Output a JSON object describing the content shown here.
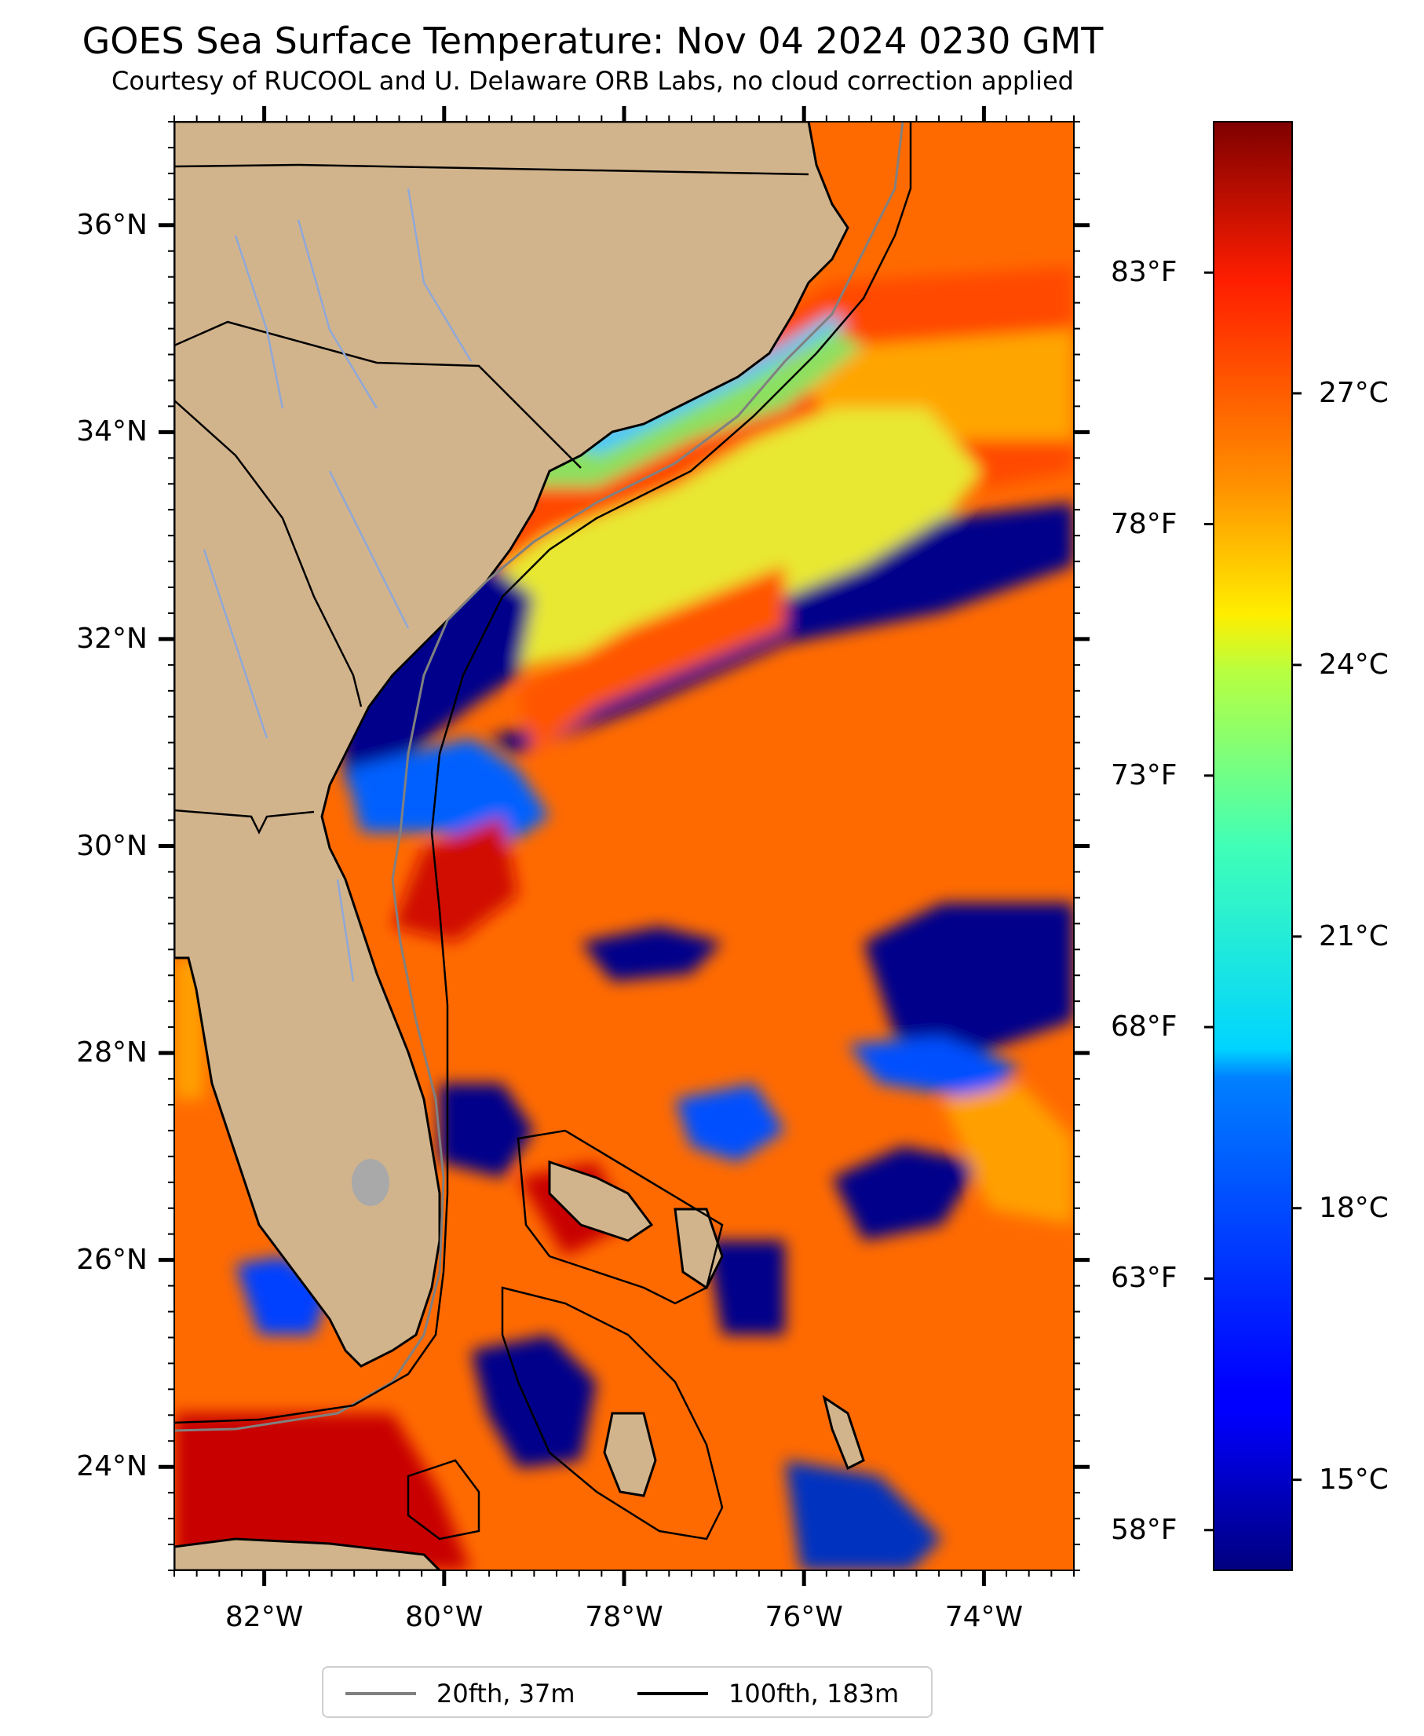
{
  "header": {
    "title": "GOES Sea Surface Temperature: Nov 04 2024 0230 GMT",
    "subtitle": "Courtesy of RUCOOL and U. Delaware ORB Labs, no cloud correction applied"
  },
  "map": {
    "lon_range": [
      -83,
      -73
    ],
    "lat_range": [
      23,
      37
    ],
    "lat_ticks": [
      {
        "value": 36,
        "label": "36°N"
      },
      {
        "value": 34,
        "label": "34°N"
      },
      {
        "value": 32,
        "label": "32°N"
      },
      {
        "value": 30,
        "label": "30°N"
      },
      {
        "value": 28,
        "label": "28°N"
      },
      {
        "value": 26,
        "label": "26°N"
      },
      {
        "value": 24,
        "label": "24°N"
      }
    ],
    "lon_ticks": [
      {
        "value": -82,
        "label": "82°W"
      },
      {
        "value": -80,
        "label": "80°W"
      },
      {
        "value": -78,
        "label": "78°W"
      },
      {
        "value": -76,
        "label": "76°W"
      },
      {
        "value": -74,
        "label": "74°W"
      }
    ],
    "colors": {
      "land": "#d2b48c",
      "cold": "#00008b",
      "rivers": "#8fa8d8",
      "isobath_20fth": "#808080",
      "isobath_100fth": "#000000"
    }
  },
  "colorbar": {
    "colormap": "jet",
    "celsius_range": [
      14,
      30
    ],
    "celsius_ticks": [
      {
        "value": 15,
        "label": "15°C"
      },
      {
        "value": 18,
        "label": "18°C"
      },
      {
        "value": 21,
        "label": "21°C"
      },
      {
        "value": 24,
        "label": "24°C"
      },
      {
        "value": 27,
        "label": "27°C"
      }
    ],
    "fahrenheit_ticks": [
      {
        "value": 58,
        "label": "58°F"
      },
      {
        "value": 63,
        "label": "63°F"
      },
      {
        "value": 68,
        "label": "68°F"
      },
      {
        "value": 73,
        "label": "73°F"
      },
      {
        "value": 78,
        "label": "78°F"
      },
      {
        "value": 83,
        "label": "83°F"
      }
    ]
  },
  "legend": {
    "items": [
      {
        "label": "20fth, 37m",
        "color": "#808080"
      },
      {
        "label": "100fth, 183m",
        "color": "#000000"
      }
    ]
  }
}
